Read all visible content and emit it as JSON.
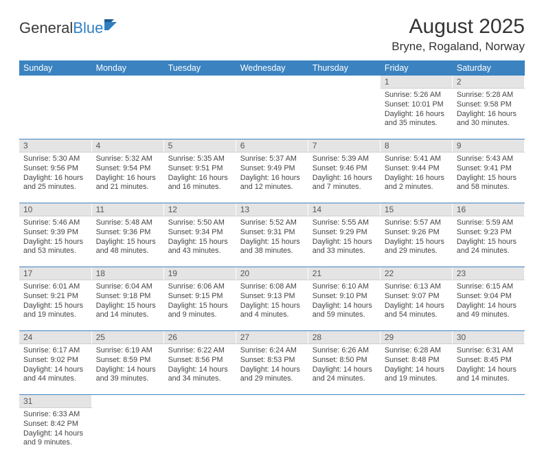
{
  "logo": {
    "general": "General",
    "blue": "Blue"
  },
  "header": {
    "title": "August 2025",
    "location": "Bryne, Rogaland, Norway"
  },
  "weekdays": [
    "Sunday",
    "Monday",
    "Tuesday",
    "Wednesday",
    "Thursday",
    "Friday",
    "Saturday"
  ],
  "weeks": [
    {
      "days": [
        {
          "num": "",
          "lines": []
        },
        {
          "num": "",
          "lines": []
        },
        {
          "num": "",
          "lines": []
        },
        {
          "num": "",
          "lines": []
        },
        {
          "num": "",
          "lines": []
        },
        {
          "num": "1",
          "lines": [
            "Sunrise: 5:26 AM",
            "Sunset: 10:01 PM",
            "Daylight: 16 hours and 35 minutes."
          ]
        },
        {
          "num": "2",
          "lines": [
            "Sunrise: 5:28 AM",
            "Sunset: 9:58 PM",
            "Daylight: 16 hours and 30 minutes."
          ]
        }
      ]
    },
    {
      "days": [
        {
          "num": "3",
          "lines": [
            "Sunrise: 5:30 AM",
            "Sunset: 9:56 PM",
            "Daylight: 16 hours and 25 minutes."
          ]
        },
        {
          "num": "4",
          "lines": [
            "Sunrise: 5:32 AM",
            "Sunset: 9:54 PM",
            "Daylight: 16 hours and 21 minutes."
          ]
        },
        {
          "num": "5",
          "lines": [
            "Sunrise: 5:35 AM",
            "Sunset: 9:51 PM",
            "Daylight: 16 hours and 16 minutes."
          ]
        },
        {
          "num": "6",
          "lines": [
            "Sunrise: 5:37 AM",
            "Sunset: 9:49 PM",
            "Daylight: 16 hours and 12 minutes."
          ]
        },
        {
          "num": "7",
          "lines": [
            "Sunrise: 5:39 AM",
            "Sunset: 9:46 PM",
            "Daylight: 16 hours and 7 minutes."
          ]
        },
        {
          "num": "8",
          "lines": [
            "Sunrise: 5:41 AM",
            "Sunset: 9:44 PM",
            "Daylight: 16 hours and 2 minutes."
          ]
        },
        {
          "num": "9",
          "lines": [
            "Sunrise: 5:43 AM",
            "Sunset: 9:41 PM",
            "Daylight: 15 hours and 58 minutes."
          ]
        }
      ]
    },
    {
      "days": [
        {
          "num": "10",
          "lines": [
            "Sunrise: 5:46 AM",
            "Sunset: 9:39 PM",
            "Daylight: 15 hours and 53 minutes."
          ]
        },
        {
          "num": "11",
          "lines": [
            "Sunrise: 5:48 AM",
            "Sunset: 9:36 PM",
            "Daylight: 15 hours and 48 minutes."
          ]
        },
        {
          "num": "12",
          "lines": [
            "Sunrise: 5:50 AM",
            "Sunset: 9:34 PM",
            "Daylight: 15 hours and 43 minutes."
          ]
        },
        {
          "num": "13",
          "lines": [
            "Sunrise: 5:52 AM",
            "Sunset: 9:31 PM",
            "Daylight: 15 hours and 38 minutes."
          ]
        },
        {
          "num": "14",
          "lines": [
            "Sunrise: 5:55 AM",
            "Sunset: 9:29 PM",
            "Daylight: 15 hours and 33 minutes."
          ]
        },
        {
          "num": "15",
          "lines": [
            "Sunrise: 5:57 AM",
            "Sunset: 9:26 PM",
            "Daylight: 15 hours and 29 minutes."
          ]
        },
        {
          "num": "16",
          "lines": [
            "Sunrise: 5:59 AM",
            "Sunset: 9:23 PM",
            "Daylight: 15 hours and 24 minutes."
          ]
        }
      ]
    },
    {
      "days": [
        {
          "num": "17",
          "lines": [
            "Sunrise: 6:01 AM",
            "Sunset: 9:21 PM",
            "Daylight: 15 hours and 19 minutes."
          ]
        },
        {
          "num": "18",
          "lines": [
            "Sunrise: 6:04 AM",
            "Sunset: 9:18 PM",
            "Daylight: 15 hours and 14 minutes."
          ]
        },
        {
          "num": "19",
          "lines": [
            "Sunrise: 6:06 AM",
            "Sunset: 9:15 PM",
            "Daylight: 15 hours and 9 minutes."
          ]
        },
        {
          "num": "20",
          "lines": [
            "Sunrise: 6:08 AM",
            "Sunset: 9:13 PM",
            "Daylight: 15 hours and 4 minutes."
          ]
        },
        {
          "num": "21",
          "lines": [
            "Sunrise: 6:10 AM",
            "Sunset: 9:10 PM",
            "Daylight: 14 hours and 59 minutes."
          ]
        },
        {
          "num": "22",
          "lines": [
            "Sunrise: 6:13 AM",
            "Sunset: 9:07 PM",
            "Daylight: 14 hours and 54 minutes."
          ]
        },
        {
          "num": "23",
          "lines": [
            "Sunrise: 6:15 AM",
            "Sunset: 9:04 PM",
            "Daylight: 14 hours and 49 minutes."
          ]
        }
      ]
    },
    {
      "days": [
        {
          "num": "24",
          "lines": [
            "Sunrise: 6:17 AM",
            "Sunset: 9:02 PM",
            "Daylight: 14 hours and 44 minutes."
          ]
        },
        {
          "num": "25",
          "lines": [
            "Sunrise: 6:19 AM",
            "Sunset: 8:59 PM",
            "Daylight: 14 hours and 39 minutes."
          ]
        },
        {
          "num": "26",
          "lines": [
            "Sunrise: 6:22 AM",
            "Sunset: 8:56 PM",
            "Daylight: 14 hours and 34 minutes."
          ]
        },
        {
          "num": "27",
          "lines": [
            "Sunrise: 6:24 AM",
            "Sunset: 8:53 PM",
            "Daylight: 14 hours and 29 minutes."
          ]
        },
        {
          "num": "28",
          "lines": [
            "Sunrise: 6:26 AM",
            "Sunset: 8:50 PM",
            "Daylight: 14 hours and 24 minutes."
          ]
        },
        {
          "num": "29",
          "lines": [
            "Sunrise: 6:28 AM",
            "Sunset: 8:48 PM",
            "Daylight: 14 hours and 19 minutes."
          ]
        },
        {
          "num": "30",
          "lines": [
            "Sunrise: 6:31 AM",
            "Sunset: 8:45 PM",
            "Daylight: 14 hours and 14 minutes."
          ]
        }
      ]
    },
    {
      "days": [
        {
          "num": "31",
          "lines": [
            "Sunrise: 6:33 AM",
            "Sunset: 8:42 PM",
            "Daylight: 14 hours and 9 minutes."
          ]
        },
        {
          "num": "",
          "lines": []
        },
        {
          "num": "",
          "lines": []
        },
        {
          "num": "",
          "lines": []
        },
        {
          "num": "",
          "lines": []
        },
        {
          "num": "",
          "lines": []
        },
        {
          "num": "",
          "lines": []
        }
      ]
    }
  ],
  "colors": {
    "header_bg": "#3b83c0",
    "daynum_bg": "#e4e4e4",
    "rule": "#3b83c0"
  }
}
